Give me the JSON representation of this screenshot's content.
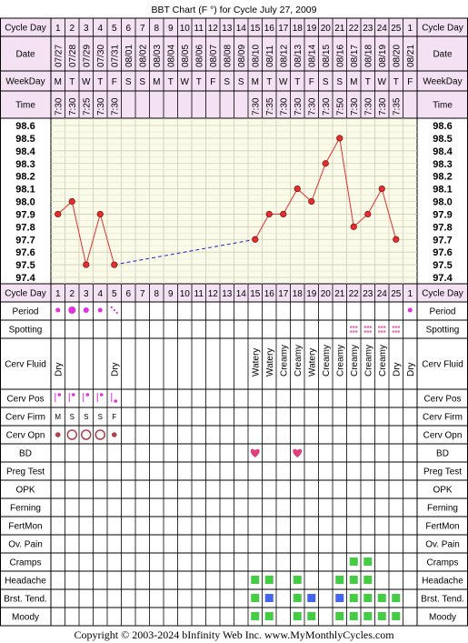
{
  "title": "BBT Chart (F °) for Cycle July 27, 2009",
  "footer": "Copyright © 2003-2024 bInfinity Web Inc.    www.MyMonthlyCycles.com",
  "labels": {
    "cycle_day": "Cycle Day",
    "date": "Date",
    "weekday": "WeekDay",
    "time": "Time",
    "period": "Period",
    "spotting": "Spotting",
    "cerv_fluid": "Cerv Fluid",
    "cerv_pos": "Cerv Pos",
    "cerv_firm": "Cerv Firm",
    "cerv_opn": "Cerv Opn",
    "bd": "BD",
    "preg_test": "Preg Test",
    "opk": "OPK",
    "ferning": "Ferning",
    "fertmon": "FertMon",
    "ov_pain": "Ov. Pain",
    "cramps": "Cramps",
    "headache": "Headache",
    "brst_tend": "Brst. Tend.",
    "moody": "Moody"
  },
  "colors": {
    "header_bg": "#f4e2f4",
    "grid_bg": "#fbfbe9",
    "line": "#e03030",
    "dash": "#2222cc",
    "period": "#e030e0",
    "heart": "#e0407a",
    "green": "#44cc44",
    "blue": "#4466ee",
    "spot": "#e070b0"
  },
  "chart_data": {
    "type": "line",
    "title": "BBT Chart (F °) for Cycle July 27, 2009",
    "ylim": [
      97.4,
      98.6
    ],
    "y_ticks": [
      "98.6",
      "98.5",
      "98.4",
      "98.3",
      "98.2",
      "98.1",
      "98.0",
      "97.9",
      "97.8",
      "97.7",
      "97.6",
      "97.5",
      "97.4"
    ],
    "cycle_days": [
      "1",
      "2",
      "3",
      "4",
      "5",
      "6",
      "7",
      "8",
      "9",
      "10",
      "11",
      "12",
      "13",
      "14",
      "15",
      "16",
      "17",
      "18",
      "19",
      "20",
      "21",
      "22",
      "23",
      "24",
      "25",
      "1"
    ],
    "dates": [
      "07/27",
      "07/28",
      "07/29",
      "07/30",
      "07/31",
      "08/01",
      "08/02",
      "08/03",
      "08/04",
      "08/05",
      "08/06",
      "08/07",
      "08/08",
      "08/09",
      "08/10",
      "08/11",
      "08/12",
      "08/13",
      "08/14",
      "08/15",
      "08/16",
      "08/17",
      "08/18",
      "08/19",
      "08/20",
      "08/21"
    ],
    "weekdays": [
      "M",
      "T",
      "W",
      "T",
      "F",
      "S",
      "S",
      "M",
      "T",
      "W",
      "T",
      "F",
      "S",
      "S",
      "M",
      "T",
      "W",
      "T",
      "F",
      "S",
      "S",
      "M",
      "T",
      "W",
      "T",
      "F"
    ],
    "times": [
      "7:30",
      "7:30",
      "7:25",
      "7:30",
      "7:30",
      "",
      "",
      "",
      "",
      "",
      "",
      "",
      "",
      "",
      "7:30",
      "7:35",
      "7:30",
      "7:30",
      "7:30",
      "7:30",
      "7:50",
      "7:30",
      "7:30",
      "7:30",
      "7:35",
      ""
    ],
    "temps": [
      97.9,
      98.0,
      97.5,
      97.9,
      97.5,
      null,
      null,
      null,
      null,
      null,
      null,
      null,
      null,
      null,
      97.7,
      97.9,
      97.9,
      98.1,
      98.0,
      98.3,
      98.5,
      97.8,
      97.9,
      98.1,
      97.7,
      null
    ],
    "period": [
      "light",
      "heavy",
      "medium",
      "light",
      "spotting",
      "",
      "",
      "",
      "",
      "",
      "",
      "",
      "",
      "",
      "",
      "",
      "",
      "",
      "",
      "",
      "",
      "",
      "",
      "",
      "",
      "light"
    ],
    "spotting": [
      false,
      false,
      false,
      false,
      false,
      false,
      false,
      false,
      false,
      false,
      false,
      false,
      false,
      false,
      false,
      false,
      false,
      false,
      false,
      false,
      false,
      true,
      true,
      true,
      true,
      false
    ],
    "cerv_fluid": [
      "Dry",
      "",
      "",
      "",
      "Dry",
      "",
      "",
      "",
      "",
      "",
      "",
      "",
      "",
      "",
      "Watery",
      "Watery",
      "Creamy",
      "Creamy",
      "Watery",
      "Creamy",
      "Creamy",
      "Creamy",
      "Creamy",
      "Creamy",
      "Dry",
      "Dry"
    ],
    "cerv_pos": [
      "high",
      "high",
      "high",
      "high",
      "low",
      "",
      "",
      "",
      "",
      "",
      "",
      "",
      "",
      "",
      "",
      "",
      "",
      "",
      "",
      "",
      "",
      "",
      "",
      "",
      "",
      ""
    ],
    "cerv_firm": [
      "M",
      "S",
      "S",
      "S",
      "F",
      "",
      "",
      "",
      "",
      "",
      "",
      "",
      "",
      "",
      "",
      "",
      "",
      "",
      "",
      "",
      "",
      "",
      "",
      "",
      "",
      ""
    ],
    "cerv_opn": [
      "closed",
      "open",
      "open",
      "open",
      "closed",
      "",
      "",
      "",
      "",
      "",
      "",
      "",
      "",
      "",
      "",
      "",
      "",
      "",
      "",
      "",
      "",
      "",
      "",
      "",
      "",
      ""
    ],
    "bd": [
      false,
      false,
      false,
      false,
      false,
      false,
      false,
      false,
      false,
      false,
      false,
      false,
      false,
      false,
      true,
      false,
      false,
      true,
      false,
      false,
      false,
      false,
      false,
      false,
      false,
      false
    ],
    "cramps": [
      "",
      "",
      "",
      "",
      "",
      "",
      "",
      "",
      "",
      "",
      "",
      "",
      "",
      "",
      "",
      "",
      "",
      "",
      "",
      "",
      "",
      "green",
      "green",
      "",
      "",
      ""
    ],
    "headache": [
      "",
      "",
      "",
      "",
      "",
      "",
      "",
      "",
      "",
      "",
      "",
      "",
      "",
      "",
      "green",
      "green",
      "",
      "green",
      "",
      "",
      "green",
      "green",
      "green",
      "",
      "",
      ""
    ],
    "brst_tend": [
      "",
      "",
      "",
      "",
      "",
      "",
      "",
      "",
      "",
      "",
      "",
      "",
      "",
      "",
      "green",
      "blue",
      "",
      "green",
      "blue",
      "",
      "blue",
      "green",
      "green",
      "green",
      "green",
      ""
    ],
    "moody": [
      "",
      "",
      "",
      "",
      "",
      "",
      "",
      "",
      "",
      "",
      "",
      "",
      "",
      "",
      "green",
      "green",
      "",
      "green",
      "green",
      "",
      "green",
      "green",
      "green",
      "green",
      "green",
      ""
    ]
  }
}
